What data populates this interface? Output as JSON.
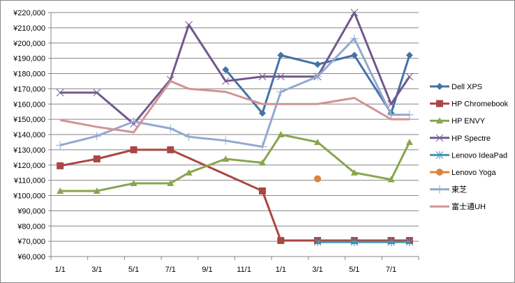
{
  "chart_data": {
    "type": "line",
    "title": "",
    "xlabel": "",
    "ylabel": "",
    "ylim": [
      60000,
      220000
    ],
    "ystep": 10000,
    "y_tick_labels": [
      "¥60,000",
      "¥70,000",
      "¥80,000",
      "¥90,000",
      "¥100,000",
      "¥110,000",
      "¥120,000",
      "¥130,000",
      "¥140,000",
      "¥150,000",
      "¥160,000",
      "¥170,000",
      "¥180,000",
      "¥190,000",
      "¥200,000",
      "¥210,000",
      "¥220,000"
    ],
    "x_range_months": [
      0,
      20
    ],
    "x_tick_labels": [
      "1/1",
      "3/1",
      "5/1",
      "7/1",
      "9/1",
      "11/1",
      "1/1",
      "3/1",
      "5/1",
      "7/1"
    ],
    "x_months": [
      0.5,
      2.5,
      4.5,
      6.5,
      7.5,
      9.5,
      11.5,
      12.5,
      14.5,
      16.5,
      18.5,
      19.5
    ],
    "grid": true,
    "legend": "right",
    "series": [
      {
        "name": "Dell XPS",
        "color": "#4572A7",
        "marker": "diamond",
        "values": [
          null,
          null,
          null,
          null,
          null,
          182500,
          154000,
          192000,
          186000,
          192000,
          154000,
          192000
        ]
      },
      {
        "name": "HP Chromebook",
        "color": "#AA4643",
        "marker": "square",
        "values": [
          119500,
          124000,
          130000,
          130000,
          null,
          null,
          103000,
          70500,
          70500,
          70500,
          70500,
          70500
        ]
      },
      {
        "name": "HP ENVY",
        "color": "#89A54E",
        "marker": "triangle",
        "values": [
          103000,
          103000,
          108000,
          108000,
          115000,
          124000,
          121500,
          140000,
          135000,
          115000,
          110500,
          135000
        ]
      },
      {
        "name": "HP Spectre",
        "color": "#71588F",
        "marker": "x",
        "values": [
          167500,
          167500,
          147000,
          176000,
          212000,
          175000,
          178000,
          178000,
          178000,
          220000,
          160000,
          178000
        ]
      },
      {
        "name": "Lenovo IdeaPad",
        "color": "#4198AF",
        "marker": "star",
        "values": [
          null,
          null,
          null,
          null,
          null,
          null,
          null,
          null,
          69500,
          69500,
          69500,
          69500
        ]
      },
      {
        "name": "Lenovo Yoga",
        "color": "#DB843D",
        "marker": "circle",
        "values": [
          null,
          null,
          null,
          null,
          null,
          null,
          null,
          null,
          111000,
          null,
          null,
          null
        ]
      },
      {
        "name": "東芝",
        "color": "#93A9CF",
        "marker": "plus",
        "values": [
          133000,
          139000,
          148500,
          144000,
          138500,
          136000,
          132000,
          168000,
          178000,
          203000,
          153000,
          153000
        ]
      },
      {
        "name": "富士通UH",
        "color": "#D19392",
        "marker": "none",
        "values": [
          149500,
          145000,
          141500,
          175000,
          170000,
          168000,
          160000,
          160000,
          160000,
          164000,
          150000,
          150000
        ]
      }
    ]
  }
}
